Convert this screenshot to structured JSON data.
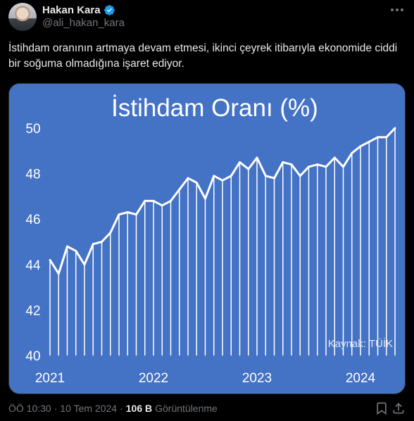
{
  "author": {
    "name": "Hakan Kara",
    "handle": "@ali_hakan_kara"
  },
  "colors": {
    "background": "#000000",
    "text": "#e7e9ea",
    "secondary_text": "#71767b",
    "verified": "#1d9bf0",
    "chart_background": "#4472c4",
    "chart_line": "#ffffff"
  },
  "tweet": {
    "text": "İstihdam oranının artmaya devam etmesi, ikinci çeyrek itibarıyla ekonomide ciddi bir soğuma olmadığına işaret ediyor."
  },
  "meta": {
    "time": "ÖÖ 10:30",
    "separator1": "·",
    "date": "10 Tem 2024",
    "separator2": "·",
    "views_count": "106 B",
    "views_label": "Görüntülenme"
  },
  "icons": {
    "verified": "verified-badge-icon",
    "more": "more-options-icon",
    "bookmark": "bookmark-icon",
    "share": "share-icon"
  },
  "chart_data": {
    "type": "area",
    "title": "İstihdam Oranı (%)",
    "source": "Kaynak: TÜİK",
    "xlabel": "",
    "ylabel": "",
    "ylim": [
      40,
      50
    ],
    "yticks": [
      "40",
      "42",
      "44",
      "46",
      "48",
      "50"
    ],
    "xticks": [
      "2021",
      "2022",
      "2023",
      "2024"
    ],
    "grid": false,
    "legend": "none",
    "x_start": "2021-01",
    "x_freq": "monthly",
    "values": [
      44.2,
      43.6,
      44.8,
      44.6,
      44.0,
      44.9,
      45.0,
      45.4,
      46.2,
      46.3,
      46.2,
      46.8,
      46.8,
      46.6,
      46.8,
      47.3,
      47.8,
      47.6,
      46.9,
      47.9,
      47.7,
      47.9,
      48.5,
      48.2,
      48.7,
      47.9,
      47.8,
      48.5,
      48.4,
      47.9,
      48.3,
      48.4,
      48.3,
      48.7,
      48.3,
      48.9,
      49.2,
      49.4,
      49.6,
      49.6,
      50.0
    ]
  }
}
